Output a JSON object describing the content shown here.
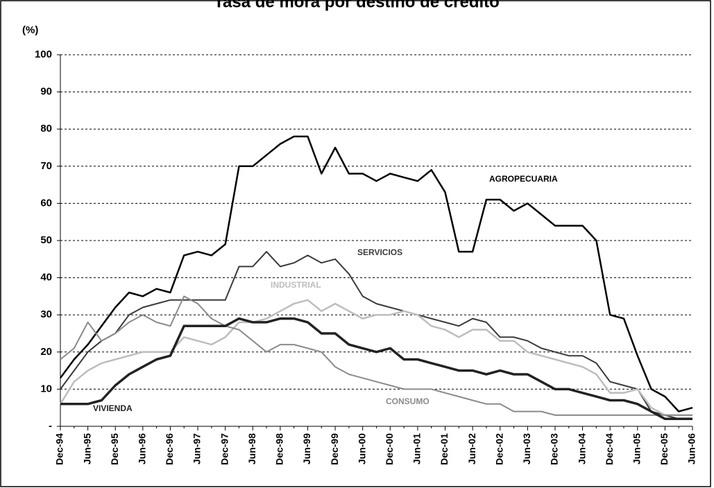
{
  "chart_data": {
    "type": "line",
    "title": "Tasa de mora por destino de crédito",
    "ylabel": "(%)",
    "categories": [
      "Dec-94",
      null,
      "Jun-95",
      null,
      "Dec-95",
      null,
      "Jun-96",
      null,
      "Dec-96",
      null,
      "Jun-97",
      null,
      "Dec-97",
      null,
      "Jun-98",
      null,
      "Dec-98",
      null,
      "Jun-99",
      null,
      "Dec-99",
      null,
      "Jun-00",
      null,
      "Dec-00",
      null,
      "Jun-01",
      null,
      "Dec-01",
      null,
      "Jun-02",
      null,
      "Dec-02",
      null,
      "Jun-03",
      null,
      "Dec-03",
      null,
      "Jun-04",
      null,
      "Dec-04",
      null,
      "Jun-05",
      null,
      "Dec-05",
      null,
      "Jun-06"
    ],
    "series": [
      {
        "name": "AGROPECUARIA",
        "color": "#000000",
        "values": [
          13,
          18,
          22,
          27,
          32,
          36,
          35,
          37,
          36,
          46,
          47,
          46,
          49,
          70,
          70,
          73,
          76,
          78,
          78,
          68,
          75,
          68,
          68,
          66,
          68,
          67,
          66,
          69,
          63,
          47,
          47,
          61,
          61,
          58,
          60,
          57,
          54,
          54,
          54,
          50,
          30,
          29,
          19,
          10,
          8,
          4,
          5
        ]
      },
      {
        "name": "SERVICIOS",
        "color": "#3a3a3a",
        "values": [
          10,
          15,
          20,
          23,
          25,
          30,
          32,
          33,
          34,
          34,
          34,
          34,
          34,
          43,
          43,
          47,
          43,
          44,
          46,
          44,
          45,
          41,
          35,
          33,
          32,
          31,
          30,
          29,
          28,
          27,
          29,
          28,
          24,
          24,
          23,
          21,
          20,
          19,
          19,
          17,
          12,
          11,
          10,
          4,
          3,
          2,
          2
        ]
      },
      {
        "name": "INDUSTRIAL",
        "color": "#bdbdbd",
        "values": [
          6,
          12,
          15,
          17,
          18,
          19,
          20,
          20,
          20,
          24,
          23,
          22,
          24,
          28,
          28,
          29,
          31,
          33,
          34,
          31,
          33,
          31,
          29,
          30,
          30,
          31,
          30,
          27,
          26,
          24,
          26,
          26,
          23,
          23,
          20,
          19,
          18,
          17,
          16,
          14,
          9,
          9,
          10,
          5,
          3,
          3,
          3
        ]
      },
      {
        "name": "CONSUMO",
        "color": "#8a8a8a",
        "values": [
          18,
          21,
          28,
          23,
          25,
          28,
          30,
          28,
          27,
          35,
          33,
          29,
          27,
          26,
          23,
          20,
          22,
          22,
          21,
          20,
          16,
          14,
          13,
          12,
          11,
          10,
          10,
          10,
          9,
          8,
          7,
          6,
          6,
          4,
          4,
          4,
          3,
          3,
          3,
          3,
          3,
          3,
          3,
          3,
          3,
          3,
          3
        ]
      },
      {
        "name": "VIVIENDA",
        "color": "#222222",
        "values": [
          6,
          6,
          6,
          7,
          11,
          14,
          16,
          18,
          19,
          27,
          27,
          27,
          27,
          29,
          28,
          28,
          29,
          29,
          28,
          25,
          25,
          22,
          21,
          20,
          21,
          18,
          18,
          17,
          16,
          15,
          15,
          14,
          15,
          14,
          14,
          12,
          10,
          10,
          9,
          8,
          7,
          7,
          6,
          4,
          2,
          2,
          2
        ]
      }
    ],
    "ylim": [
      0,
      100
    ],
    "yticks": [
      {
        "value": 0,
        "label": "-"
      },
      10,
      20,
      30,
      40,
      50,
      60,
      70,
      80,
      90,
      100
    ],
    "grid": true
  }
}
